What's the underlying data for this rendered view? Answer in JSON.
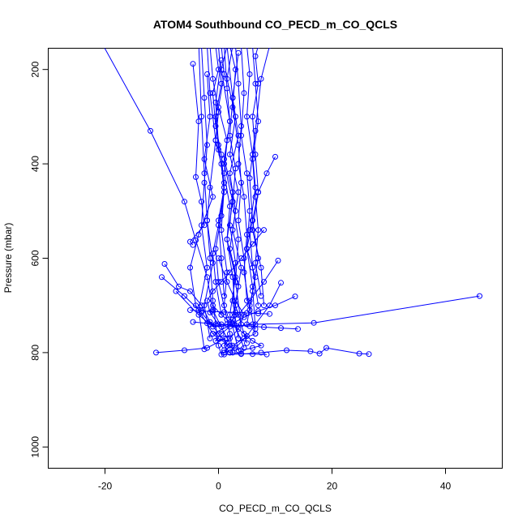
{
  "chart_data": {
    "type": "line",
    "title": "ATOM4 Southbound CO_PECD_m_CO_QCLS",
    "xlabel": "CO_PECD_m_CO_QCLS",
    "ylabel": "Pressure (mbar)",
    "xlim": [
      -30,
      50
    ],
    "ylim": [
      1045,
      155
    ],
    "y_inverted": true,
    "x_ticks": [
      -20,
      0,
      20,
      40
    ],
    "x_tick_labels": [
      "-20",
      "0",
      "20",
      "40"
    ],
    "y_ticks": [
      200,
      400,
      600,
      800,
      1000
    ],
    "y_tick_labels": [
      "200",
      "400",
      "600",
      "800",
      "1000"
    ],
    "grid": false,
    "legend": "none",
    "marker": "open-circle",
    "color": "#0000ff",
    "series": [
      {
        "x": [
          46.0,
          16.8,
          6.0,
          2.0,
          0.5,
          -0.5,
          1.2,
          -2.0,
          -6.0,
          -11.0
        ],
        "y": [
          680,
          737,
          740,
          745,
          760,
          775,
          770,
          790,
          795,
          800
        ]
      },
      {
        "x": [
          11.0,
          9.0,
          6.5,
          5.0,
          3.0,
          1.0,
          2.0,
          0.0,
          -1.0,
          2.5
        ],
        "y": [
          652,
          700,
          740,
          765,
          790,
          800,
          785,
          770,
          760,
          740
        ]
      },
      {
        "x": [
          10.5,
          8.0,
          5.5,
          3.5,
          1.5,
          -1.0,
          -3.0,
          -6.0,
          -10.0
        ],
        "y": [
          605,
          650,
          690,
          720,
          740,
          745,
          715,
          680,
          640
        ]
      },
      {
        "x": [
          13.5,
          10.0,
          7.0,
          4.5,
          2.5,
          0.5,
          -1.5,
          -3.5,
          -7.5
        ],
        "y": [
          681,
          700,
          712,
          725,
          738,
          745,
          740,
          720,
          670
        ]
      },
      {
        "x": [
          26.5,
          24.8,
          19.0,
          17.8,
          16.2,
          12.0,
          7.5,
          4.0,
          1.0
        ],
        "y": [
          803,
          802,
          790,
          802,
          797,
          795,
          800,
          803,
          804
        ]
      },
      {
        "x": [
          -20.5,
          -12.0,
          -6.0,
          -4.0,
          -2.0,
          -1.0,
          1.5
        ],
        "y": [
          145,
          330,
          480,
          562,
          640,
          710,
          770
        ]
      },
      {
        "x": [
          -3.5,
          -3.0,
          -2.5,
          -2.0,
          -1.5,
          -1.0,
          -0.5,
          0.0,
          0.5
        ],
        "y": [
          140,
          300,
          420,
          520,
          600,
          690,
          740,
          785,
          804
        ]
      },
      {
        "x": [
          -4.5,
          -3.5,
          -4.0,
          -3.0,
          -2.5,
          -5.0,
          -4.5
        ],
        "y": [
          188,
          310,
          428,
          480,
          530,
          565,
          572
        ]
      },
      {
        "x": [
          -9.5,
          -7.0,
          -5.0,
          -3.0,
          -1.5,
          0.0,
          1.5
        ],
        "y": [
          612,
          660,
          670,
          700,
          735,
          760,
          780
        ]
      },
      {
        "x": [
          -1.5,
          -1.0,
          0.0,
          -0.5,
          0.5,
          1.0,
          0.0,
          -1.0,
          -0.5,
          0.5
        ],
        "y": [
          150,
          220,
          290,
          350,
          400,
          460,
          530,
          590,
          650,
          720
        ]
      },
      {
        "x": [
          -0.5,
          0.0,
          -1.0,
          -0.5,
          0.5,
          1.0,
          0.0,
          0.5,
          1.0
        ],
        "y": [
          150,
          200,
          250,
          320,
          380,
          450,
          520,
          600,
          680
        ]
      },
      {
        "x": [
          0.0,
          0.5,
          -0.5,
          0.0,
          1.0,
          0.5,
          -0.5,
          0.0,
          1.5
        ],
        "y": [
          150,
          230,
          300,
          370,
          440,
          510,
          580,
          650,
          730
        ]
      },
      {
        "x": [
          0.5,
          1.0,
          0.0,
          1.5,
          1.0,
          2.0,
          1.5,
          2.5,
          3.0
        ],
        "y": [
          150,
          210,
          280,
          350,
          420,
          490,
          560,
          640,
          720
        ]
      },
      {
        "x": [
          1.0,
          1.5,
          2.0,
          1.0,
          2.5,
          2.0,
          3.0,
          2.5,
          3.5
        ],
        "y": [
          150,
          240,
          310,
          390,
          460,
          530,
          610,
          690,
          770
        ]
      },
      {
        "x": [
          1.5,
          2.5,
          2.0,
          3.0,
          2.5,
          3.5,
          3.0,
          4.0
        ],
        "y": [
          150,
          260,
          340,
          410,
          480,
          560,
          650,
          740
        ]
      },
      {
        "x": [
          2.0,
          3.0,
          2.5,
          3.5,
          4.0,
          3.5,
          4.5,
          5.0
        ],
        "y": [
          150,
          200,
          280,
          360,
          440,
          520,
          600,
          690
        ]
      },
      {
        "x": [
          3.0,
          3.5,
          4.0,
          3.5,
          4.5,
          5.0,
          4.5,
          5.5
        ],
        "y": [
          150,
          230,
          320,
          400,
          470,
          550,
          630,
          710
        ]
      },
      {
        "x": [
          4.0,
          4.5,
          4.0,
          5.0,
          5.5,
          5.0,
          6.0,
          6.5
        ],
        "y": [
          150,
          250,
          340,
          420,
          500,
          580,
          660,
          750
        ]
      },
      {
        "x": [
          5.0,
          5.5,
          5.0,
          6.0,
          6.5,
          5.5,
          6.0,
          7.0
        ],
        "y": [
          150,
          210,
          300,
          380,
          450,
          540,
          620,
          700
        ]
      },
      {
        "x": [
          6.0,
          6.5,
          7.0,
          6.0,
          6.5,
          7.0,
          6.5,
          7.5
        ],
        "y": [
          150,
          230,
          310,
          390,
          470,
          540,
          610,
          680
        ]
      },
      {
        "x": [
          7.0,
          6.5,
          7.0,
          6.0,
          6.5,
          7.0,
          6.0,
          7.5,
          8.0
        ],
        "y": [
          150,
          172,
          230,
          300,
          380,
          460,
          540,
          620,
          700
        ]
      },
      {
        "x": [
          9.0,
          7.5,
          6.5,
          5.5,
          6.0,
          7.0,
          6.0,
          5.0
        ],
        "y": [
          150,
          220,
          330,
          430,
          520,
          600,
          670,
          740
        ]
      },
      {
        "x": [
          10.0,
          8.5,
          7.0,
          6.0,
          5.0,
          6.5,
          5.5,
          6.5
        ],
        "y": [
          385,
          420,
          460,
          520,
          580,
          640,
          700,
          760
        ]
      },
      {
        "x": [
          -2.0,
          -1.5,
          -0.5,
          -1.5,
          -2.0,
          -1.0,
          -2.5,
          -1.5
        ],
        "y": [
          150,
          250,
          350,
          450,
          520,
          610,
          700,
          770
        ]
      },
      {
        "x": [
          -3.0,
          -2.5,
          -2.0,
          -2.5,
          -3.0,
          -2.0,
          -3.5,
          -2.5
        ],
        "y": [
          150,
          260,
          360,
          440,
          530,
          620,
          710,
          793
        ]
      },
      {
        "x": [
          -2.0,
          -1.5,
          -2.5,
          -1.0,
          -3.5,
          -5.0,
          -4.0,
          -1.0
        ],
        "y": [
          210,
          300,
          390,
          470,
          550,
          620,
          700,
          760
        ]
      },
      {
        "x": [
          0.5,
          -0.5,
          0.0,
          1.0,
          0.5,
          1.5,
          1.0,
          2.0,
          2.5
        ],
        "y": [
          180,
          270,
          360,
          450,
          540,
          630,
          700,
          760,
          800
        ]
      },
      {
        "x": [
          3.5,
          2.5,
          3.5,
          2.0,
          3.0,
          2.0,
          3.5,
          2.5,
          4.5
        ],
        "y": [
          165,
          260,
          340,
          420,
          500,
          580,
          660,
          730,
          790
        ]
      },
      {
        "x": [
          2.5,
          1.5,
          3.0,
          2.0,
          3.5,
          2.5,
          4.0,
          3.0,
          5.0
        ],
        "y": [
          150,
          220,
          300,
          380,
          460,
          540,
          620,
          700,
          780
        ]
      },
      {
        "x": [
          1.5,
          0.5,
          2.0,
          1.0,
          2.5,
          1.5,
          3.0,
          2.0,
          3.5
        ],
        "y": [
          150,
          200,
          310,
          400,
          480,
          560,
          640,
          720,
          795
        ]
      },
      {
        "x": [
          8.0,
          6.0,
          4.0,
          2.0,
          0.5,
          -1.0,
          -2.0,
          -1.5,
          0.0
        ],
        "y": [
          540,
          570,
          600,
          630,
          650,
          670,
          690,
          715,
          740
        ]
      },
      {
        "x": [
          -5.0,
          -3.0,
          -1.0,
          1.0,
          3.0,
          5.0,
          7.0,
          9.0
        ],
        "y": [
          710,
          712,
          713,
          714,
          715,
          716,
          717,
          718
        ]
      },
      {
        "x": [
          -4.5,
          -2.0,
          0.5,
          3.0,
          5.5,
          8.0,
          11.0,
          14.0
        ],
        "y": [
          735,
          738,
          740,
          742,
          744,
          746,
          748,
          750
        ]
      },
      {
        "x": [
          6.5,
          4.5,
          2.5,
          1.0,
          2.0,
          4.0,
          6.0,
          8.5
        ],
        "y": [
          760,
          770,
          785,
          795,
          800,
          802,
          803,
          804
        ]
      },
      {
        "x": [
          -1.0,
          0.5,
          2.5,
          4.5,
          6.0,
          7.5,
          6.0,
          4.0
        ],
        "y": [
          700,
          720,
          740,
          760,
          775,
          785,
          790,
          795
        ]
      },
      {
        "x": [
          0.0,
          1.5,
          3.0,
          4.5,
          3.5,
          2.0,
          1.0,
          2.0
        ],
        "y": [
          600,
          650,
          690,
          720,
          750,
          770,
          785,
          800
        ]
      }
    ]
  }
}
